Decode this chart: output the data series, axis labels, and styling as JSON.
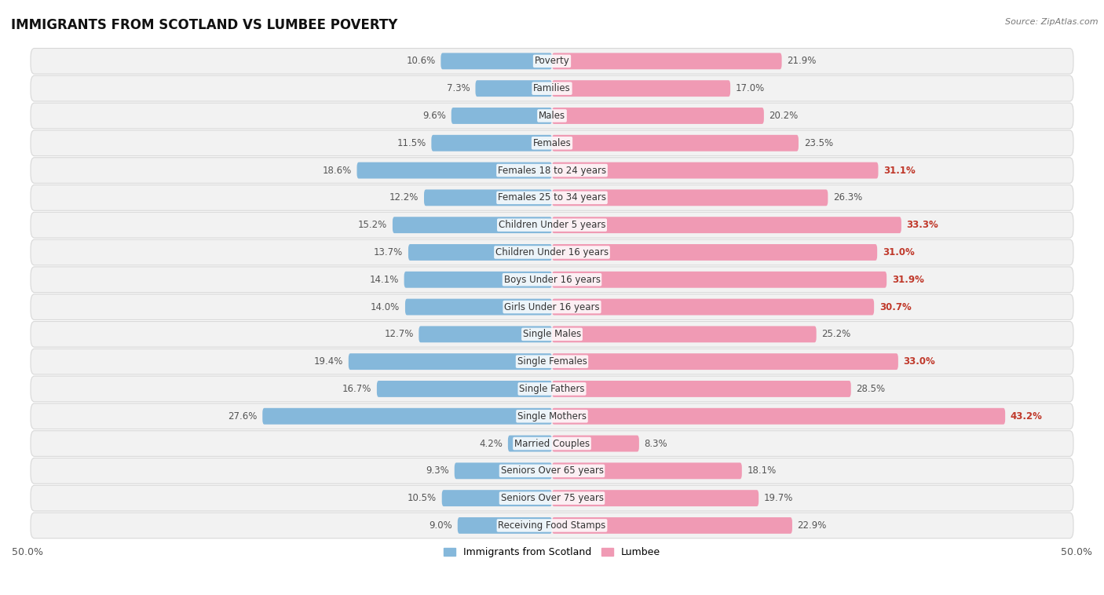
{
  "title": "IMMIGRANTS FROM SCOTLAND VS LUMBEE POVERTY",
  "source": "Source: ZipAtlas.com",
  "categories": [
    "Poverty",
    "Families",
    "Males",
    "Females",
    "Females 18 to 24 years",
    "Females 25 to 34 years",
    "Children Under 5 years",
    "Children Under 16 years",
    "Boys Under 16 years",
    "Girls Under 16 years",
    "Single Males",
    "Single Females",
    "Single Fathers",
    "Single Mothers",
    "Married Couples",
    "Seniors Over 65 years",
    "Seniors Over 75 years",
    "Receiving Food Stamps"
  ],
  "scotland_values": [
    10.6,
    7.3,
    9.6,
    11.5,
    18.6,
    12.2,
    15.2,
    13.7,
    14.1,
    14.0,
    12.7,
    19.4,
    16.7,
    27.6,
    4.2,
    9.3,
    10.5,
    9.0
  ],
  "lumbee_values": [
    21.9,
    17.0,
    20.2,
    23.5,
    31.1,
    26.3,
    33.3,
    31.0,
    31.9,
    30.7,
    25.2,
    33.0,
    28.5,
    43.2,
    8.3,
    18.1,
    19.7,
    22.9
  ],
  "scotland_color": "#85b8db",
  "lumbee_color": "#f09ab4",
  "background_color": "#ffffff",
  "row_bg_color": "#f2f2f2",
  "row_border_color": "#d8d8d8",
  "axis_max": 50.0,
  "legend_label_scotland": "Immigrants from Scotland",
  "legend_label_lumbee": "Lumbee",
  "bar_height": 0.6,
  "label_fontsize": 8.5,
  "title_fontsize": 12,
  "source_fontsize": 8.0,
  "value_color_dark": "#c0392b",
  "value_color_light": "#555555"
}
